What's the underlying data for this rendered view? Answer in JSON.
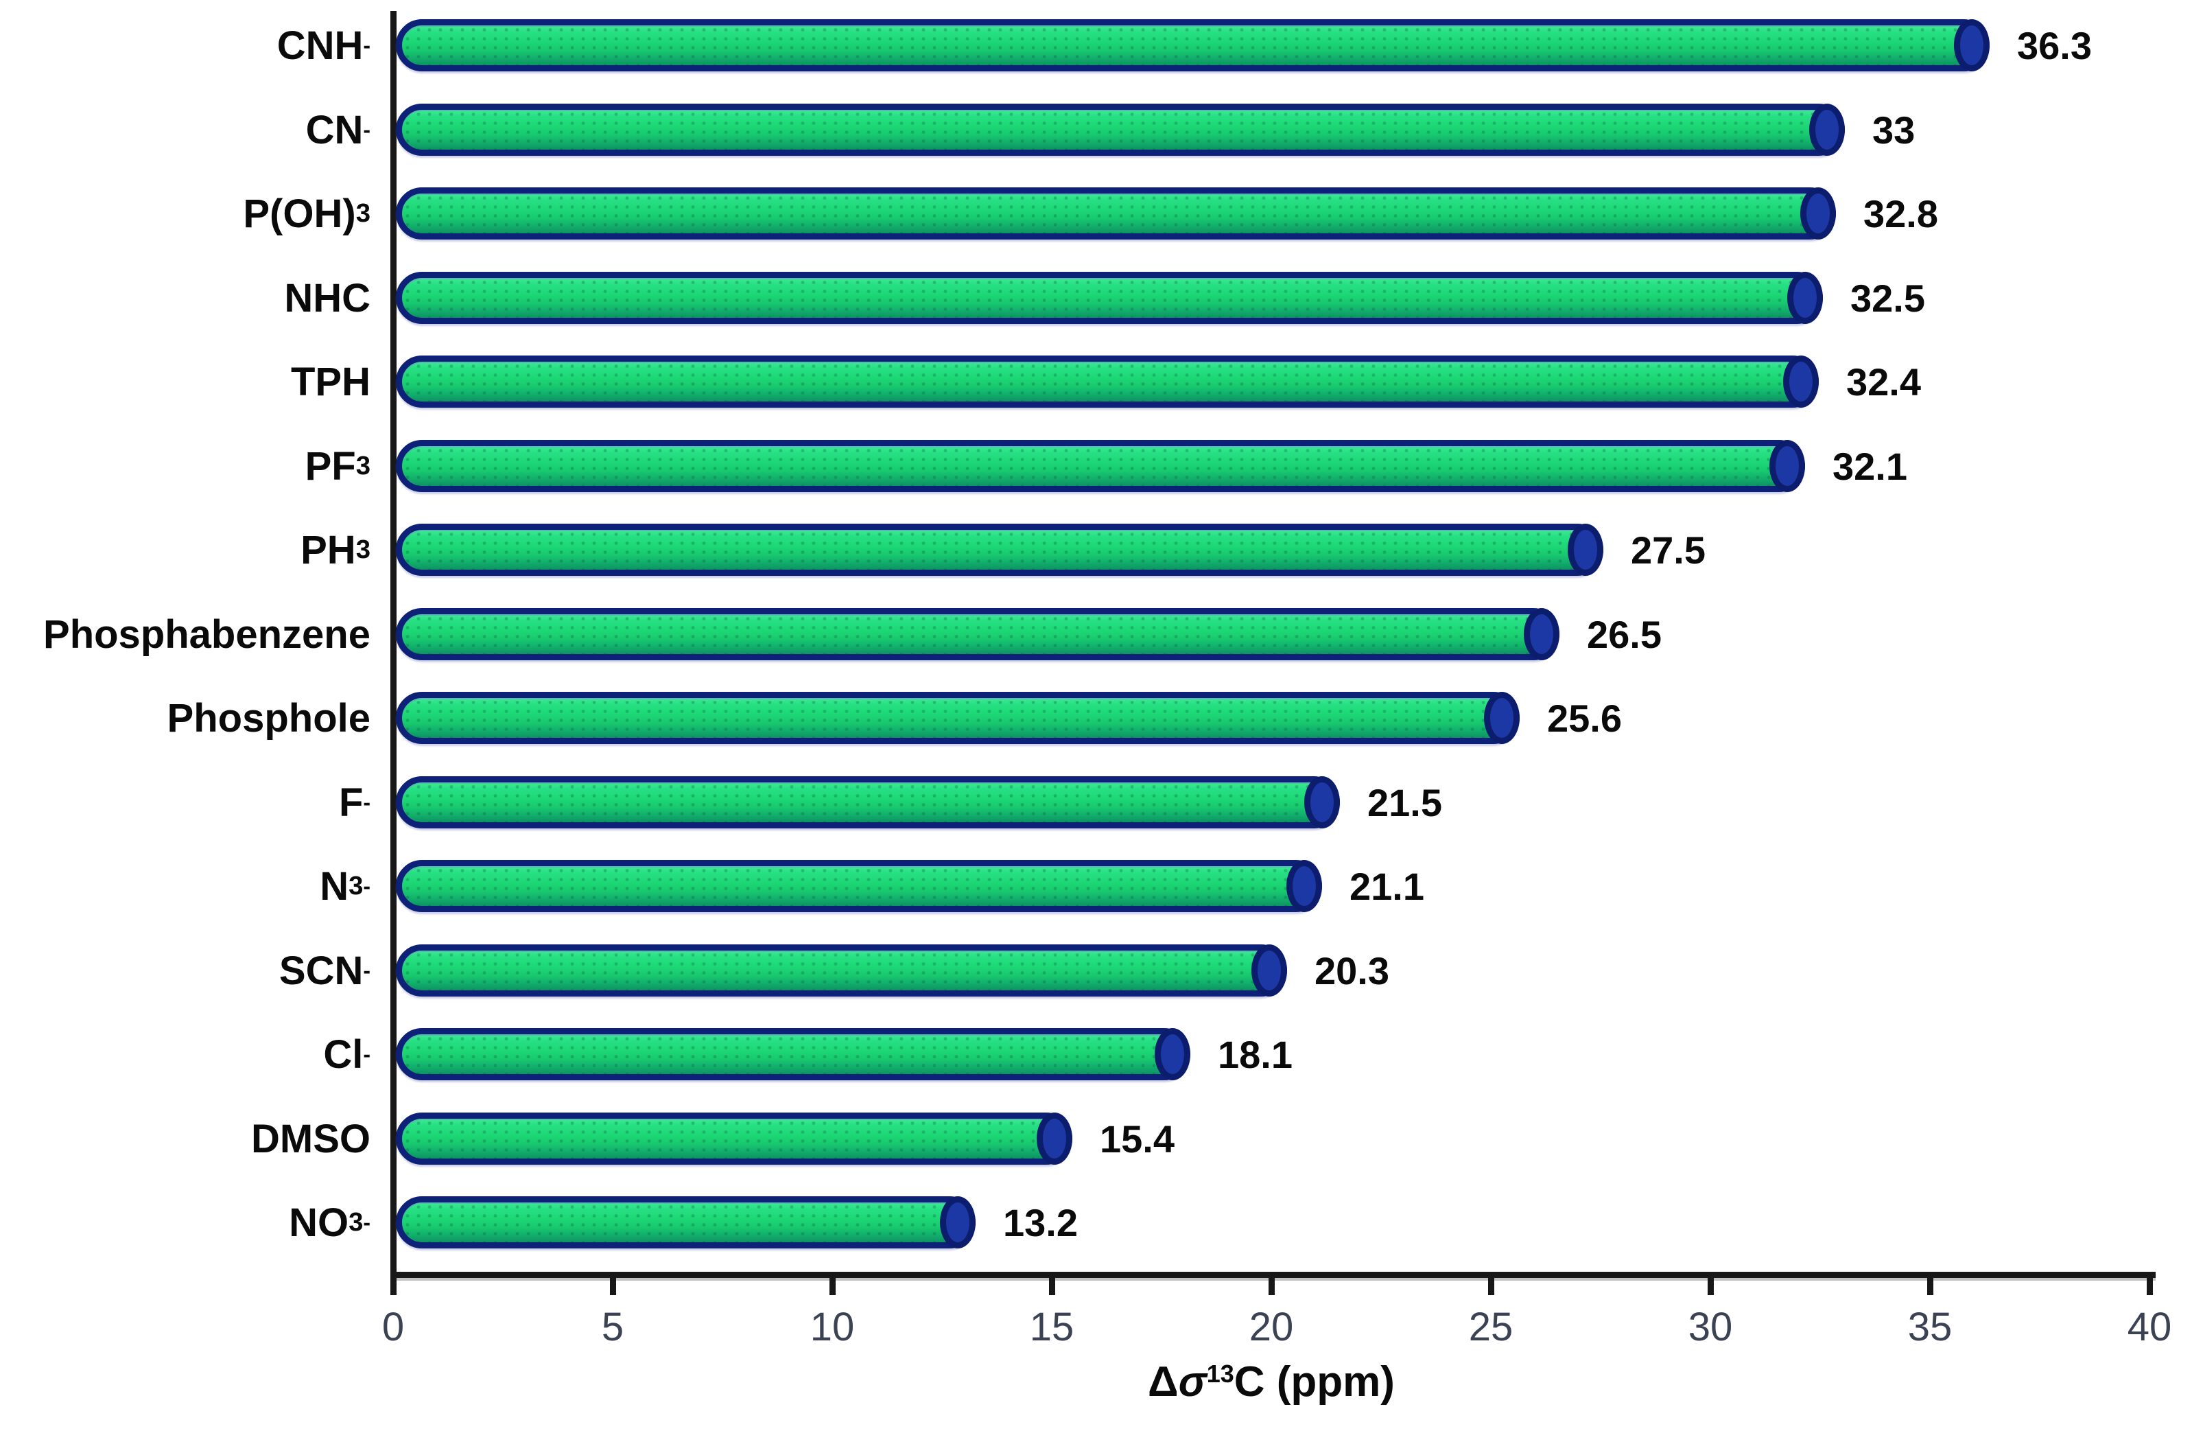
{
  "chart_data": {
    "type": "bar",
    "orientation": "horizontal",
    "title": "",
    "xlabel": "Δσ¹³C (ppm)",
    "xlabel_parts": [
      {
        "text": "Δ"
      },
      {
        "italic": "σ"
      },
      {
        "sup": "13"
      },
      {
        "text": "C (ppm)"
      }
    ],
    "ylabel": "",
    "xlim": [
      0,
      40
    ],
    "x_ticks": [
      0,
      5,
      10,
      15,
      20,
      25,
      30,
      35,
      40
    ],
    "grid": false,
    "legend": false,
    "categories": [
      "CNH⁻",
      "CN⁻",
      "P(OH)₃",
      "NHC",
      "TPH",
      "PF₃",
      "PH₃",
      "Phosphabenzene",
      "Phosphole",
      "F⁻",
      "N₃⁻",
      "SCN⁻",
      "Cl⁻",
      "DMSO",
      "NO₃⁻"
    ],
    "category_parts": [
      {
        "text": "CNH",
        "sup": "-"
      },
      {
        "text": "CN",
        "sup": "-"
      },
      {
        "text": "P(OH)",
        "sub": "3"
      },
      {
        "text": "NHC"
      },
      {
        "text": "TPH"
      },
      {
        "text": "PF",
        "sub": "3"
      },
      {
        "text": "PH",
        "sub": "3"
      },
      {
        "text": "Phosphabenzene"
      },
      {
        "text": "Phosphole"
      },
      {
        "text": "F",
        "sup": "-"
      },
      {
        "text": "N",
        "sub": "3",
        "sup": "-"
      },
      {
        "text": "SCN",
        "sup": "-"
      },
      {
        "text": "Cl",
        "sup": "-"
      },
      {
        "text": "DMSO"
      },
      {
        "text": "NO",
        "sub": "3",
        "sup": "-"
      }
    ],
    "values": [
      36.3,
      33,
      32.8,
      32.5,
      32.4,
      32.1,
      27.5,
      26.5,
      25.6,
      21.5,
      21.1,
      20.3,
      18.1,
      15.4,
      13.2
    ],
    "value_labels": [
      "36.3",
      "33",
      "32.8",
      "32.5",
      "32.4",
      "32.1",
      "27.5",
      "26.5",
      "25.6",
      "21.5",
      "21.1",
      "20.3",
      "18.1",
      "15.4",
      "13.2"
    ],
    "colors": {
      "bar_fill": "#1dd776",
      "bar_border": "#0e2178",
      "bar_end_cap": "#1b38a4",
      "axis": "#181818",
      "tick_label": "#3a4254",
      "text": "#0a0a0a",
      "background": "#ffffff"
    }
  }
}
